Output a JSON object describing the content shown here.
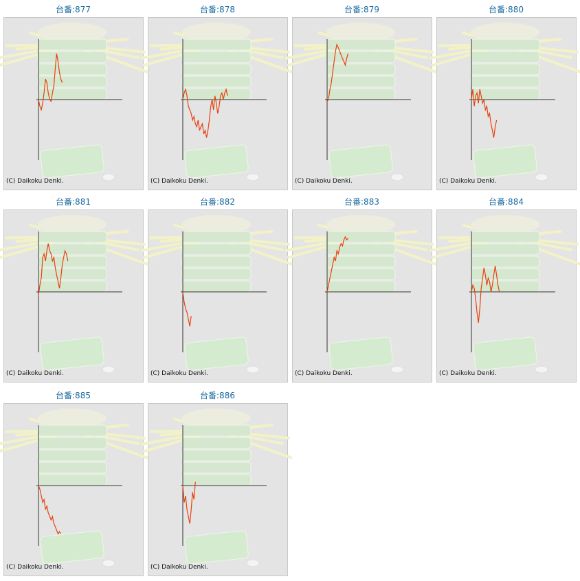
{
  "chart_data": [
    {
      "type": "line",
      "title": "台番:877",
      "credit": "(C) Daikoku Denki.",
      "xlim": [
        0,
        60
      ],
      "ylim": [
        -100,
        100
      ],
      "color": "#e8400c",
      "values": [
        0,
        -11,
        -17,
        -6,
        11,
        34,
        28,
        11,
        0,
        -3,
        11,
        23,
        51,
        76,
        63,
        45,
        34,
        28
      ]
    },
    {
      "type": "line",
      "title": "台番:878",
      "credit": "(C) Daikoku Denki.",
      "xlim": [
        0,
        60
      ],
      "ylim": [
        -100,
        100
      ],
      "color": "#e8400c",
      "values": [
        0,
        11,
        17,
        6,
        -11,
        -17,
        -23,
        -34,
        -28,
        -40,
        -45,
        -34,
        -51,
        -45,
        -40,
        -57,
        -51,
        -63,
        -51,
        -34,
        -11,
        0,
        -17,
        6,
        -6,
        -23,
        -11,
        6,
        11,
        0,
        11,
        17,
        6
      ]
    },
    {
      "type": "line",
      "title": "台番:879",
      "credit": "(C) Daikoku Denki.",
      "xlim": [
        0,
        60
      ],
      "ylim": [
        -100,
        100
      ],
      "color": "#e8400c",
      "values": [
        -3,
        0,
        17,
        28,
        45,
        63,
        80,
        91,
        86,
        80,
        74,
        68,
        63,
        57,
        68,
        76
      ]
    },
    {
      "type": "line",
      "title": "台番:880",
      "credit": "(C) Daikoku Denki.",
      "xlim": [
        0,
        60
      ],
      "ylim": [
        -100,
        100
      ],
      "color": "#e8400c",
      "values": [
        0,
        17,
        -11,
        6,
        11,
        -6,
        17,
        6,
        -6,
        0,
        -17,
        -11,
        -28,
        -23,
        -40,
        -51,
        -63,
        -45,
        -34
      ]
    },
    {
      "type": "line",
      "title": "台番:881",
      "credit": "(C) Daikoku Denki.",
      "xlim": [
        0,
        60
      ],
      "ylim": [
        -100,
        100
      ],
      "color": "#e8400c",
      "values": [
        -6,
        11,
        23,
        57,
        63,
        51,
        68,
        80,
        68,
        63,
        51,
        57,
        40,
        28,
        17,
        6,
        23,
        45,
        57,
        68,
        63,
        51
      ]
    },
    {
      "type": "line",
      "title": "台番:882",
      "credit": "(C) Daikoku Denki.",
      "xlim": [
        0,
        60
      ],
      "ylim": [
        -100,
        100
      ],
      "color": "#e8400c",
      "values": [
        0,
        -17,
        -28,
        -34,
        -45,
        -57,
        -40
      ]
    },
    {
      "type": "line",
      "title": "台番:883",
      "credit": "(C) Daikoku Denki.",
      "xlim": [
        0,
        60
      ],
      "ylim": [
        -100,
        100
      ],
      "color": "#e8400c",
      "values": [
        0,
        11,
        23,
        34,
        45,
        57,
        51,
        68,
        63,
        74,
        80,
        76,
        86,
        91,
        86,
        89
      ]
    },
    {
      "type": "line",
      "title": "台番:884",
      "credit": "(C) Daikoku Denki.",
      "xlim": [
        0,
        60
      ],
      "ylim": [
        -100,
        100
      ],
      "color": "#e8400c",
      "values": [
        0,
        11,
        6,
        -11,
        -34,
        -51,
        -28,
        6,
        23,
        40,
        28,
        11,
        23,
        17,
        0,
        11,
        28,
        43,
        28,
        11,
        0
      ]
    },
    {
      "type": "line",
      "title": "台番:885",
      "credit": "(C) Daikoku Denki.",
      "xlim": [
        0,
        60
      ],
      "ylim": [
        -100,
        100
      ],
      "color": "#e8400c",
      "values": [
        0,
        -6,
        -17,
        -28,
        -23,
        -40,
        -34,
        -45,
        -51,
        -57,
        -51,
        -63,
        -68,
        -74,
        -80,
        -76,
        -80
      ]
    },
    {
      "type": "line",
      "title": "台番:886",
      "credit": "(C) Daikoku Denki.",
      "xlim": [
        0,
        60
      ],
      "ylim": [
        -100,
        100
      ],
      "color": "#e8400c",
      "values": [
        0,
        -28,
        -17,
        -40,
        -51,
        -63,
        -40,
        -11,
        -23,
        6
      ]
    }
  ]
}
